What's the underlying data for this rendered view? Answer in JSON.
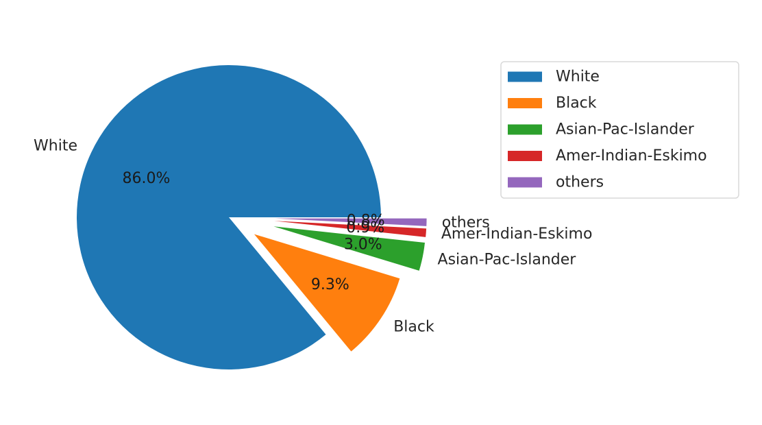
{
  "chart_data": {
    "type": "pie",
    "labels": [
      "White",
      "Black",
      "Asian-Pac-Islander",
      "Amer-Indian-Eskimo",
      "others"
    ],
    "values": [
      86.0,
      9.3,
      3.0,
      0.9,
      0.8
    ],
    "autopct_labels": [
      "86.0%",
      "9.3%",
      "3.0%",
      "0.9%",
      "0.8%"
    ],
    "colors": [
      "#1f77b4",
      "#ff7f0e",
      "#2ca02c",
      "#d62728",
      "#9467bd"
    ],
    "explode": [
      0,
      0.2,
      0.3,
      0.3,
      0.3
    ],
    "legend": {
      "entries": [
        "White",
        "Black",
        "Asian-Pac-Islander",
        "Amer-Indian-Eskimo",
        "others"
      ],
      "placement": "upper-right, outside plot"
    }
  }
}
